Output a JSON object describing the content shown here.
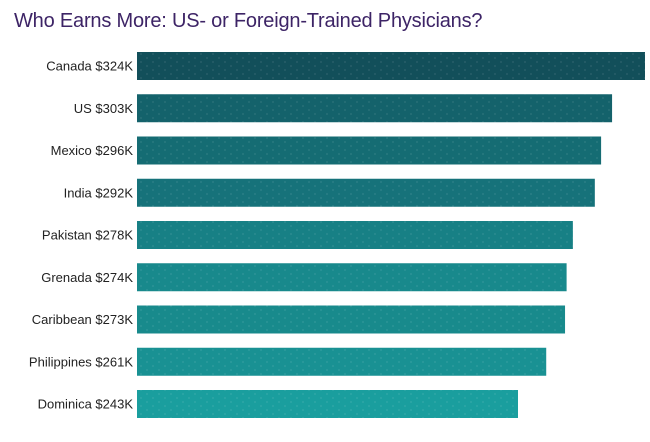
{
  "chart_data": {
    "type": "bar",
    "orientation": "horizontal",
    "title": "Who Earns More: US- or Foreign-Trained Physicians?",
    "xlabel": "",
    "ylabel": "",
    "categories": [
      "Canada",
      "US",
      "Mexico",
      "India",
      "Pakistan",
      "Grenada",
      "Caribbean",
      "Philippines",
      "Dominica"
    ],
    "values": [
      324,
      303,
      296,
      292,
      278,
      274,
      273,
      261,
      243
    ],
    "value_labels": [
      "$324K",
      "$303K",
      "$296K",
      "$292K",
      "$278K",
      "$274K",
      "$273K",
      "$261K",
      "$243K"
    ],
    "unit": "$K",
    "grid": false,
    "legend": "none",
    "colors": [
      "#124f5a",
      "#14626b",
      "#156c73",
      "#16727a",
      "#178085",
      "#18898c",
      "#188a8c",
      "#199193",
      "#1a9e9e"
    ]
  }
}
